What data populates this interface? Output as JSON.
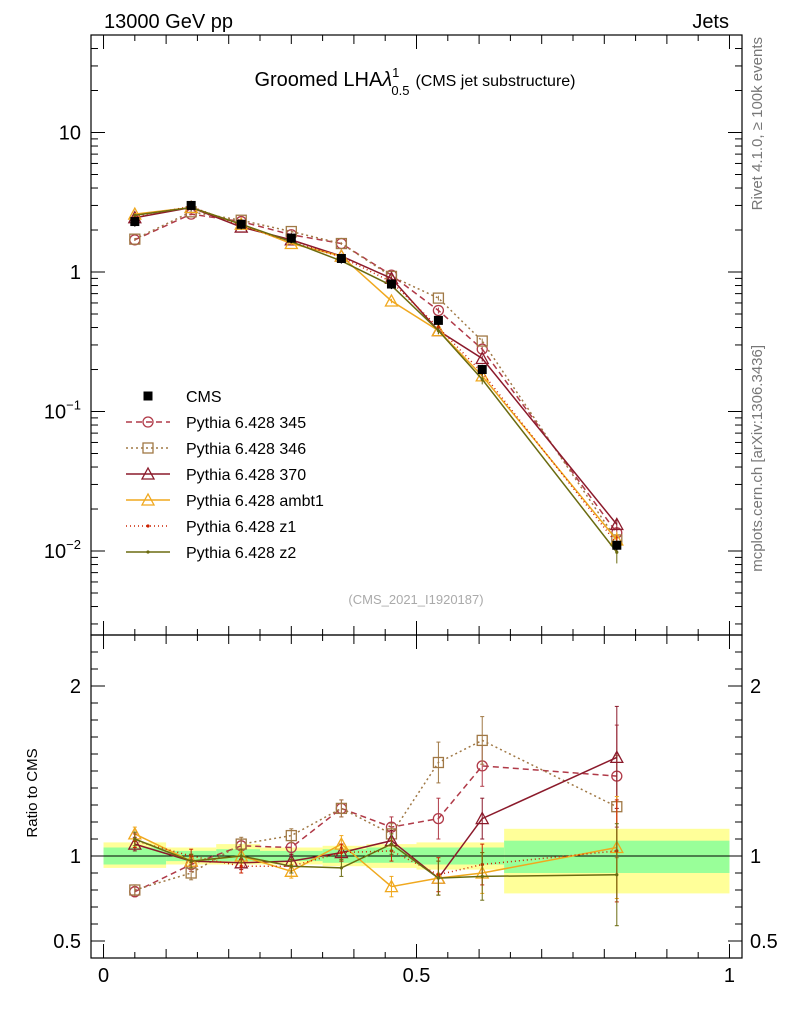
{
  "header": {
    "left": "13000 GeV pp",
    "right": "Jets"
  },
  "side_labels": {
    "upper": "Rivet 4.1.0, ≥ 100k events",
    "lower": "mcplots.cern.ch [arXiv:1306.3436]"
  },
  "chart_data": {
    "type": "line",
    "title": {
      "main": "Groomed LHA",
      "symbol": "λ",
      "sup": "1",
      "sub": "0.5",
      "suffix": "(CMS jet substructure)"
    },
    "watermark": "(CMS_2021_I1920187)",
    "x": [
      0.05,
      0.15,
      0.2,
      0.3,
      0.4,
      0.45,
      0.55,
      0.6,
      0.8
    ],
    "x_bin_edges": [
      0.0,
      0.1,
      0.18,
      0.25,
      0.35,
      0.42,
      0.5,
      0.64,
      0.7,
      1.0
    ],
    "x_plot": [
      0.05,
      0.14,
      0.22,
      0.3,
      0.38,
      0.46,
      0.535,
      0.605,
      0.82
    ],
    "xlim": [
      -0.02,
      1.02
    ],
    "xticks": [
      {
        "value": 0,
        "label": "0"
      },
      {
        "value": 0.5,
        "label": "0.5"
      },
      {
        "value": 1,
        "label": "1"
      }
    ],
    "main_ylim": [
      0.0025,
      50
    ],
    "main_yticks": [
      {
        "value": 10,
        "label": "10"
      },
      {
        "value": 1,
        "label": "1"
      },
      {
        "value": 0.1,
        "base": "10",
        "exp": "−1"
      },
      {
        "value": 0.01,
        "base": "10",
        "exp": "−2"
      }
    ],
    "ratio_ylabel": "Ratio to CMS",
    "ratio_ylim": [
      0.4,
      2.3
    ],
    "ratio_yticks": [
      {
        "value": 0.5,
        "label": "0.5"
      },
      {
        "value": 1,
        "label": "1"
      },
      {
        "value": 2,
        "label": "2"
      }
    ],
    "data_series": {
      "name": "CMS",
      "color": "#000000",
      "values": [
        2.3,
        3.0,
        2.2,
        1.75,
        1.25,
        0.82,
        0.45,
        0.2,
        0.011
      ]
    },
    "ratio_bands": [
      {
        "x0": 0.0,
        "x1": 0.1,
        "inner": [
          0.95,
          1.05
        ],
        "outer": [
          0.93,
          1.08
        ]
      },
      {
        "x0": 0.1,
        "x1": 0.18,
        "inner": [
          0.97,
          1.03
        ],
        "outer": [
          0.95,
          1.05
        ]
      },
      {
        "x0": 0.18,
        "x1": 0.25,
        "inner": [
          0.97,
          1.04
        ],
        "outer": [
          0.95,
          1.07
        ]
      },
      {
        "x0": 0.25,
        "x1": 0.35,
        "inner": [
          0.97,
          1.03
        ],
        "outer": [
          0.95,
          1.05
        ]
      },
      {
        "x0": 0.35,
        "x1": 0.42,
        "inner": [
          0.96,
          1.04
        ],
        "outer": [
          0.94,
          1.06
        ]
      },
      {
        "x0": 0.42,
        "x1": 0.5,
        "inner": [
          0.96,
          1.05
        ],
        "outer": [
          0.93,
          1.07
        ]
      },
      {
        "x0": 0.5,
        "x1": 0.64,
        "inner": [
          0.95,
          1.05
        ],
        "outer": [
          0.92,
          1.08
        ]
      },
      {
        "x0": 0.64,
        "x1": 1.0,
        "inner": [
          0.9,
          1.09
        ],
        "outer": [
          0.78,
          1.16
        ]
      }
    ],
    "band_colors": {
      "inner": "#99ff99",
      "outer": "#ffff99"
    },
    "series": [
      {
        "name": "Pythia 6.428 345",
        "color": "#b03a48",
        "dash": "6,4",
        "marker": "circle",
        "values": [
          1.7,
          2.6,
          2.3,
          1.85,
          1.6,
          0.95,
          0.53,
          0.28,
          0.0135
        ],
        "ratio": [
          0.79,
          0.95,
          1.06,
          1.05,
          1.28,
          1.17,
          1.22,
          1.53,
          1.47
        ],
        "ratio_err": [
          0.03,
          0.04,
          0.04,
          0.04,
          0.05,
          0.06,
          0.12,
          0.12,
          0.3
        ]
      },
      {
        "name": "Pythia 6.428 346",
        "color": "#a07845",
        "dash": "2,3",
        "marker": "square",
        "values": [
          1.72,
          2.7,
          2.35,
          1.95,
          1.6,
          0.93,
          0.65,
          0.32,
          0.012
        ],
        "ratio": [
          0.8,
          0.9,
          1.07,
          1.12,
          1.28,
          1.13,
          1.55,
          1.68,
          1.29
        ],
        "ratio_err": [
          0.03,
          0.04,
          0.04,
          0.04,
          0.05,
          0.06,
          0.12,
          0.14,
          0.3
        ]
      },
      {
        "name": "Pythia 6.428 370",
        "color": "#8b1a2b",
        "dash": "",
        "marker": "triangle",
        "values": [
          2.45,
          2.9,
          2.1,
          1.7,
          1.3,
          0.9,
          0.38,
          0.24,
          0.0155
        ],
        "ratio": [
          1.07,
          0.97,
          0.96,
          0.97,
          1.02,
          1.09,
          0.87,
          1.22,
          1.58
        ],
        "ratio_err": [
          0.04,
          0.04,
          0.04,
          0.04,
          0.05,
          0.06,
          0.1,
          0.12,
          0.3
        ]
      },
      {
        "name": "Pythia 6.428 ambt1",
        "color": "#f0a81e",
        "dash": "",
        "marker": "triangle",
        "values": [
          2.6,
          2.9,
          2.2,
          1.6,
          1.3,
          0.62,
          0.38,
          0.18,
          0.012
        ],
        "ratio": [
          1.13,
          0.97,
          1.0,
          0.91,
          1.07,
          0.82,
          0.87,
          0.9,
          1.05
        ],
        "ratio_err": [
          0.04,
          0.04,
          0.04,
          0.04,
          0.05,
          0.06,
          0.1,
          0.12,
          0.3
        ]
      },
      {
        "name": "Pythia 6.428 z1",
        "color": "#cc2200",
        "dash": "1,3",
        "marker": "dot",
        "values": [
          2.5,
          2.95,
          2.15,
          1.65,
          1.28,
          0.85,
          0.4,
          0.19,
          0.0113
        ],
        "ratio": [
          1.09,
          1.0,
          0.94,
          0.94,
          1.02,
          1.03,
          0.89,
          0.95,
          1.03
        ],
        "ratio_err": [
          0.04,
          0.04,
          0.04,
          0.04,
          0.05,
          0.06,
          0.1,
          0.12,
          0.3
        ]
      },
      {
        "name": "Pythia 6.428 z2",
        "color": "#6b6b10",
        "dash": "",
        "marker": "dot",
        "values": [
          2.55,
          2.9,
          2.2,
          1.65,
          1.2,
          0.8,
          0.38,
          0.17,
          0.0098
        ],
        "ratio": [
          1.1,
          0.97,
          1.0,
          0.94,
          0.93,
          1.07,
          0.87,
          0.88,
          0.89
        ],
        "ratio_err": [
          0.04,
          0.04,
          0.04,
          0.04,
          0.05,
          0.06,
          0.1,
          0.14,
          0.3
        ]
      }
    ]
  }
}
